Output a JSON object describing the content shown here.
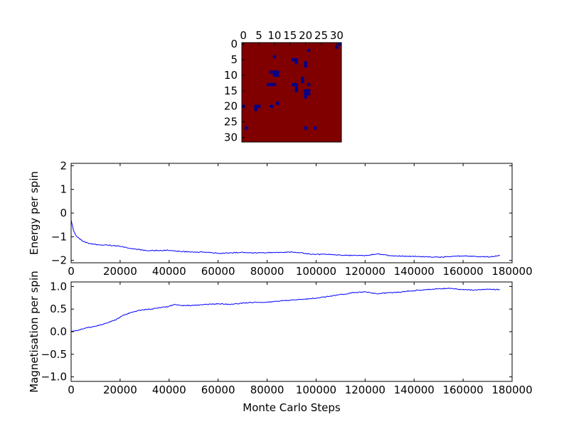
{
  "chart_data": [
    {
      "type": "heatmap",
      "xlabel": "",
      "ylabel": "",
      "grid_size": 32,
      "x_ticks": [
        "0",
        "5",
        "10",
        "15",
        "20",
        "25",
        "30"
      ],
      "y_ticks": [
        "0",
        "5",
        "10",
        "15",
        "20",
        "25",
        "30"
      ],
      "x_ticks_position": "top",
      "background_state": "up",
      "colors": {
        "up": "#800000",
        "down": "#00008b"
      },
      "down_spins": [
        [
          31,
          0
        ],
        [
          30,
          1
        ],
        [
          21,
          2
        ],
        [
          10,
          4
        ],
        [
          16,
          5
        ],
        [
          17,
          5
        ],
        [
          17,
          6
        ],
        [
          20,
          6
        ],
        [
          20,
          7
        ],
        [
          9,
          9
        ],
        [
          10,
          9
        ],
        [
          11,
          9
        ],
        [
          10,
          10
        ],
        [
          11,
          10
        ],
        [
          19,
          11
        ],
        [
          19,
          12
        ],
        [
          8,
          13
        ],
        [
          9,
          13
        ],
        [
          10,
          13
        ],
        [
          16,
          13
        ],
        [
          17,
          13
        ],
        [
          21,
          13
        ],
        [
          17,
          14
        ],
        [
          17,
          15
        ],
        [
          20,
          15
        ],
        [
          21,
          15
        ],
        [
          20,
          16
        ],
        [
          21,
          16
        ],
        [
          20,
          17
        ],
        [
          11,
          19
        ],
        [
          0,
          20
        ],
        [
          4,
          20
        ],
        [
          5,
          20
        ],
        [
          9,
          20
        ],
        [
          4,
          21
        ],
        [
          1,
          27
        ],
        [
          20,
          27
        ],
        [
          23,
          27
        ]
      ]
    },
    {
      "type": "line",
      "xlabel": "",
      "ylabel": "Energy per spin",
      "xlim": [
        0,
        180000
      ],
      "ylim": [
        -2.1,
        2.1
      ],
      "x_ticks": [
        "0",
        "20000",
        "40000",
        "60000",
        "80000",
        "100000",
        "120000",
        "140000",
        "160000",
        "180000"
      ],
      "y_ticks": [
        "−2",
        "−1",
        "0",
        "1",
        "2"
      ],
      "grid": false,
      "line_color": "#0000ff",
      "x": [
        0,
        1000,
        2000,
        3000,
        5000,
        7000,
        10000,
        15000,
        20000,
        25000,
        30000,
        35000,
        40000,
        45000,
        50000,
        55000,
        60000,
        65000,
        70000,
        75000,
        80000,
        85000,
        90000,
        95000,
        100000,
        105000,
        110000,
        115000,
        120000,
        125000,
        130000,
        135000,
        140000,
        145000,
        150000,
        155000,
        160000,
        165000,
        170000,
        175000
      ],
      "y": [
        -0.3,
        -0.75,
        -0.95,
        -1.05,
        -1.2,
        -1.28,
        -1.33,
        -1.36,
        -1.4,
        -1.5,
        -1.58,
        -1.58,
        -1.57,
        -1.62,
        -1.65,
        -1.65,
        -1.7,
        -1.68,
        -1.66,
        -1.68,
        -1.67,
        -1.66,
        -1.64,
        -1.7,
        -1.75,
        -1.74,
        -1.78,
        -1.79,
        -1.8,
        -1.72,
        -1.8,
        -1.82,
        -1.83,
        -1.85,
        -1.86,
        -1.84,
        -1.8,
        -1.84,
        -1.85,
        -1.8
      ]
    },
    {
      "type": "line",
      "xlabel": "Monte Carlo Steps",
      "ylabel": "Magnetisation per spin",
      "xlim": [
        0,
        180000
      ],
      "ylim": [
        -1.1,
        1.1
      ],
      "x_ticks": [
        "0",
        "20000",
        "40000",
        "60000",
        "80000",
        "100000",
        "120000",
        "140000",
        "160000",
        "180000"
      ],
      "y_ticks": [
        "−1.0",
        "−0.5",
        "0.0",
        "0.5",
        "1.0"
      ],
      "grid": false,
      "line_color": "#0000ff",
      "x": [
        0,
        2000,
        4000,
        6000,
        8000,
        10000,
        12000,
        15000,
        18000,
        20000,
        22000,
        25000,
        28000,
        30000,
        33000,
        36000,
        40000,
        42000,
        45000,
        50000,
        55000,
        60000,
        65000,
        70000,
        75000,
        80000,
        85000,
        90000,
        95000,
        100000,
        105000,
        110000,
        115000,
        120000,
        125000,
        130000,
        135000,
        140000,
        145000,
        150000,
        155000,
        160000,
        165000,
        170000,
        175000
      ],
      "y": [
        0.0,
        0.02,
        0.05,
        0.08,
        0.1,
        0.12,
        0.15,
        0.2,
        0.26,
        0.32,
        0.38,
        0.43,
        0.47,
        0.49,
        0.5,
        0.53,
        0.56,
        0.6,
        0.58,
        0.58,
        0.6,
        0.62,
        0.6,
        0.63,
        0.65,
        0.65,
        0.68,
        0.7,
        0.72,
        0.74,
        0.78,
        0.82,
        0.86,
        0.88,
        0.84,
        0.86,
        0.88,
        0.91,
        0.93,
        0.95,
        0.96,
        0.93,
        0.92,
        0.94,
        0.93
      ]
    }
  ]
}
